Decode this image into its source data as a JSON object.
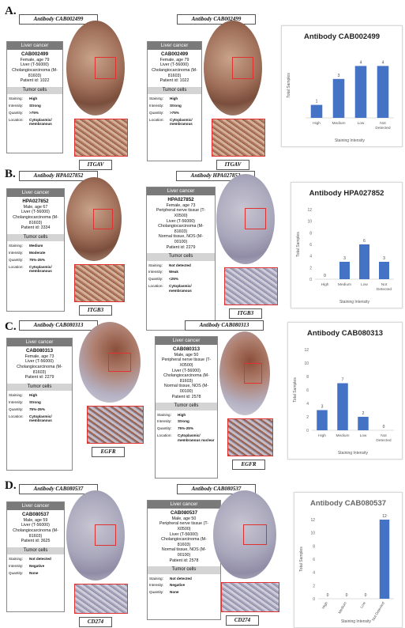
{
  "panels": [
    {
      "letter": "A.",
      "left": {
        "antibody": "Antibody CAB002499",
        "header": "Liver cancer",
        "id": "CAB002499",
        "lines": [
          "Female, age 79",
          "Liver (T-56000)",
          "Cholangiocarcinoma (M-",
          "81603)",
          "Patient id: 1022"
        ],
        "tumor_header": "Tumor cells",
        "rows": [
          [
            "Staining:",
            "High"
          ],
          [
            "Intensity:",
            "Strong"
          ],
          [
            "Quantity:",
            ">75%"
          ],
          [
            "Location:",
            "Cytoplasmic/ membranous"
          ]
        ],
        "gene": "ITGAV"
      },
      "right": {
        "antibody": "Antibody CAB002499",
        "header": "Liver cancer",
        "id": "CAB002499",
        "lines": [
          "Female, age 79",
          "Liver (T-56000)",
          "Cholangiocarcinoma (M-",
          "81603)",
          "Patient id: 1022"
        ],
        "tumor_header": "Tumor cells",
        "rows": [
          [
            "Staining:",
            "High"
          ],
          [
            "Intensity:",
            "Strong"
          ],
          [
            "Quantity:",
            ">75%"
          ],
          [
            "Location:",
            "Cytoplasmic/ membranous"
          ]
        ],
        "gene": "ITGAV"
      },
      "chart": {
        "title": "Antibody CAB002499"
      }
    },
    {
      "letter": "B.",
      "left": {
        "antibody": "Antibody HPA027852",
        "header": "Liver cancer",
        "id": "HPA027852",
        "lines": [
          "Male, age 67",
          "Liver (T-56000)",
          "Cholangiocarcinoma (M-",
          "81603)",
          "Patient id: 3334"
        ],
        "tumor_header": "Tumor cells",
        "rows": [
          [
            "Staining:",
            "Medium"
          ],
          [
            "Intensity:",
            "Moderate"
          ],
          [
            "Quantity:",
            "75%-25%"
          ],
          [
            "Location:",
            "Cytoplasmic/ membranous"
          ]
        ],
        "gene": "ITGB3"
      },
      "right": {
        "antibody": "Antibody HPA027852",
        "header": "Liver cancer",
        "id": "HPA027852",
        "lines": [
          "Female, age 73",
          "Peripheral nerve tissue (T-",
          "X0500)",
          "Liver (T-56000)",
          "Cholangiocarcinoma (M-",
          "81603)",
          "Normal tissue, NOS (M-",
          "00100)",
          "Patient id: 2279"
        ],
        "tumor_header": "Tumor cells",
        "rows": [
          [
            "Staining:",
            "Not detected"
          ],
          [
            "Intensity:",
            "Weak"
          ],
          [
            "Quantity:",
            "<25%"
          ],
          [
            "Location:",
            "Cytoplasmic/ membranous"
          ]
        ],
        "gene": "ITGB3"
      },
      "chart": {
        "title": "Antibody HPA027852"
      }
    },
    {
      "letter": "C.",
      "left": {
        "antibody": "Antibody CAB080313",
        "header": "Liver cancer",
        "id": "CAB080313",
        "lines": [
          "Female, age 73",
          "Liver (T-56000)",
          "Cholangiocarcinoma (M-",
          "81603)",
          "Patient id: 2279"
        ],
        "tumor_header": "Tumor cells",
        "rows": [
          [
            "Staining:",
            "High"
          ],
          [
            "Intensity:",
            "Strong"
          ],
          [
            "Quantity:",
            "75%-25%"
          ],
          [
            "Location:",
            "Cytoplasmic/ membranous"
          ]
        ],
        "gene": "EGFR"
      },
      "right": {
        "antibody": "Antibody CAB080313",
        "header": "Liver cancer",
        "id": "CAB080313",
        "lines": [
          "Male, age 50",
          "Peripheral nerve tissue (T-",
          "X0500)",
          "Liver (T-56000)",
          "Cholangiocarcinoma (M-",
          "81603)",
          "Normal tissue, NOS (M-",
          "00100)",
          "Patient id: 2578"
        ],
        "tumor_header": "Tumor cells",
        "rows": [
          [
            "Staining:",
            "High"
          ],
          [
            "Intensity:",
            "Strong"
          ],
          [
            "Quantity:",
            "75%-25%"
          ],
          [
            "Location:",
            "Cytoplasmic/ membranous nuclear"
          ]
        ],
        "gene": "EGFR"
      },
      "chart": {
        "title": "Antibody CAB080313"
      }
    },
    {
      "letter": "D.",
      "left": {
        "antibody": "Antibody CAB080537",
        "header": "Liver cancer",
        "id": "CAB080537",
        "lines": [
          "Male, age 59",
          "Liver (T-56000)",
          "Cholangiocarcinoma (M-",
          "81603)",
          "Patient id: 3625"
        ],
        "tumor_header": "Tumor cells",
        "rows": [
          [
            "Staining:",
            "Not detected"
          ],
          [
            "Intensity:",
            "Negative"
          ],
          [
            "Quantity:",
            "None"
          ]
        ],
        "gene": "CD274"
      },
      "right": {
        "antibody": "Antibody CAB080537",
        "header": "Liver cancer",
        "id": "CAB080537",
        "lines": [
          "Male, age 50",
          "Peripheral nerve tissue (T-",
          "X0500)",
          "Liver (T-56000)",
          "Cholangiocarcinoma (M-",
          "81603)",
          "Normal tissue, NOS (M-",
          "00100)",
          "Patient id: 2578"
        ],
        "tumor_header": "Tumor cells",
        "rows": [
          [
            "Staining:",
            "Not detected"
          ],
          [
            "Intensity:",
            "Negative"
          ],
          [
            "Quantity:",
            "None"
          ]
        ],
        "gene": "CD274"
      },
      "chart": {
        "title": "Antibody CAB080537"
      }
    }
  ],
  "chart_data": [
    {
      "type": "bar",
      "title": "Antibody CAB002499",
      "categories": [
        "High",
        "Medium",
        "Low",
        "Not Detected"
      ],
      "values": [
        1,
        3,
        4,
        4
      ],
      "xlabel": "Staining Intensity",
      "ylabel": "Total Samples",
      "ylim": [
        0,
        5
      ],
      "bar_color": "#4472c4"
    },
    {
      "type": "bar",
      "title": "Antibody HPA027852",
      "categories": [
        "High",
        "Medium",
        "Low",
        "Not Detected"
      ],
      "values": [
        0,
        3,
        6,
        3
      ],
      "xlabel": "Staining Intensity",
      "ylabel": "Total Samples",
      "ylim": [
        0,
        12
      ],
      "yticks": [
        0,
        2,
        4,
        6,
        8,
        10,
        12
      ],
      "bar_color": "#4472c4"
    },
    {
      "type": "bar",
      "title": "Antibody CAB080313",
      "categories": [
        "High",
        "Medium",
        "Low",
        "Not Detected"
      ],
      "values": [
        3,
        7,
        2,
        0
      ],
      "xlabel": "Staining Intensity",
      "ylabel": "Total Samples",
      "ylim": [
        0,
        12
      ],
      "yticks": [
        0,
        2,
        4,
        6,
        8,
        10,
        12
      ],
      "bar_color": "#4472c4"
    },
    {
      "type": "bar",
      "title": "Antibody CAB080537",
      "categories": [
        "High",
        "Medium",
        "Low",
        "Not Detected"
      ],
      "values": [
        0,
        0,
        0,
        12
      ],
      "xlabel": "Staining Intensity",
      "ylabel": "Total Samples",
      "ylim": [
        0,
        12
      ],
      "yticks": [
        0,
        2,
        4,
        6,
        8,
        10,
        12
      ],
      "bar_color": "#4472c4"
    }
  ]
}
